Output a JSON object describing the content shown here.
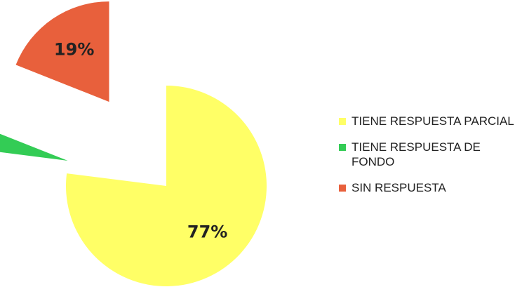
{
  "chart_data": {
    "type": "pie",
    "categories": [
      "TIENE RESPUESTA PARCIAL",
      "TIENE RESPUESTA DE FONDO",
      "SIN RESPUESTA"
    ],
    "values": [
      77,
      4,
      19
    ],
    "value_labels": [
      "77%",
      null,
      "19%"
    ],
    "colors": [
      "#ffff66",
      "#33cc55",
      "#e8603c"
    ],
    "legend": "right"
  }
}
